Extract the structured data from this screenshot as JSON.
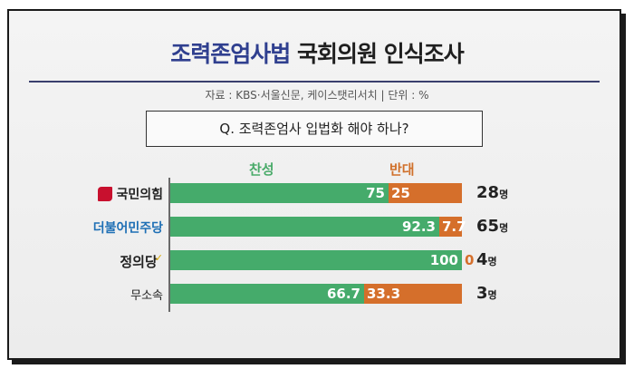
{
  "header": {
    "title_accent": "조력존엄사법",
    "title_rest": "국회의원 인식조사",
    "source": "자료 : KBS·서울신문, 케이스탯리서치 | 단위 : %"
  },
  "question": "Q. 조력존엄사 입법화 해야 하나?",
  "legend": {
    "yes": "찬성",
    "no": "반대"
  },
  "colors": {
    "yes": "#45ab6b",
    "no": "#d56f2b",
    "accent": "#2f3f8f"
  },
  "chart_data": {
    "type": "bar",
    "stacked": true,
    "orientation": "horizontal",
    "title": "조력존엄사법 국회의원 인식조사",
    "unit": "%",
    "categories": [
      "국민의힘",
      "더불어민주당",
      "정의당",
      "무소속"
    ],
    "series": [
      {
        "name": "찬성",
        "values": [
          75,
          92.3,
          100,
          66.7
        ]
      },
      {
        "name": "반대",
        "values": [
          25,
          7.7,
          0,
          33.3
        ]
      }
    ],
    "counts": [
      "28",
      "65",
      "4",
      "3"
    ],
    "count_unit": "명",
    "xlim": [
      0,
      100
    ],
    "grid": false,
    "legend_position": "top"
  }
}
